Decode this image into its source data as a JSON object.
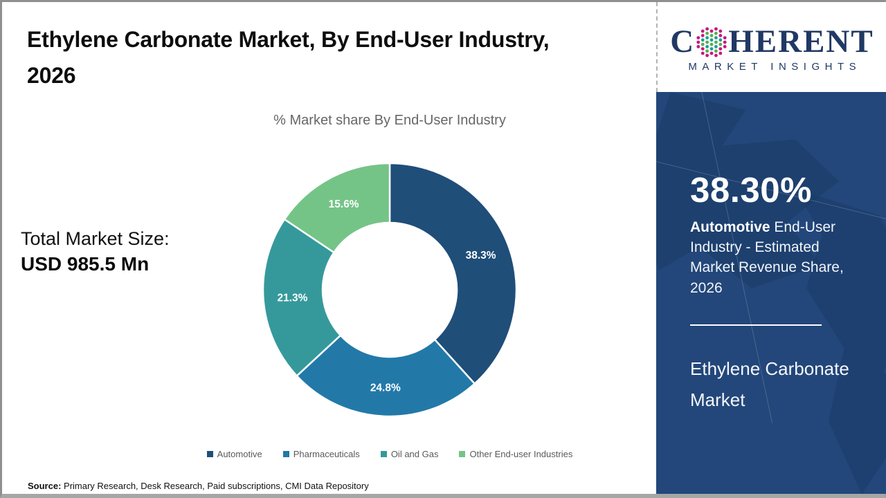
{
  "page": {
    "title": "Ethylene Carbonate Market, By End-User Industry, 2026",
    "source_label": "Source:",
    "source_text": " Primary Research, Desk Research, Paid subscriptions, CMI Data Repository"
  },
  "left": {
    "total_label": "Total Market Size:",
    "total_value": "USD 985.5 Mn"
  },
  "chart_data": {
    "type": "pie",
    "variant": "donut",
    "title": "% Market share By End-User Industry",
    "categories": [
      "Automotive",
      "Pharmaceuticals",
      "Oil and Gas",
      "Other End-user Industries"
    ],
    "values": [
      38.3,
      24.8,
      21.3,
      15.6
    ],
    "colors": [
      "#1F4E79",
      "#2279A8",
      "#35999B",
      "#74C487"
    ],
    "hole_ratio": 0.53,
    "start_angle_deg": 0,
    "direction": "clockwise",
    "legend_position": "bottom",
    "label_format": "percent_one_decimal"
  },
  "sidebar": {
    "stat_value": "38.30%",
    "stat_bold": "Automotive",
    "stat_rest": " End-User Industry - Estimated Market Revenue Share, 2026",
    "product_name": "Ethylene Carbonate Market",
    "logo": {
      "word_start": "C",
      "word_end": "HERENT",
      "tagline": "MARKET INSIGHTS",
      "navy": "#203864",
      "dot_teal": "#1E9E94",
      "dot_green": "#56B04C",
      "dot_pink": "#C4197D"
    }
  }
}
